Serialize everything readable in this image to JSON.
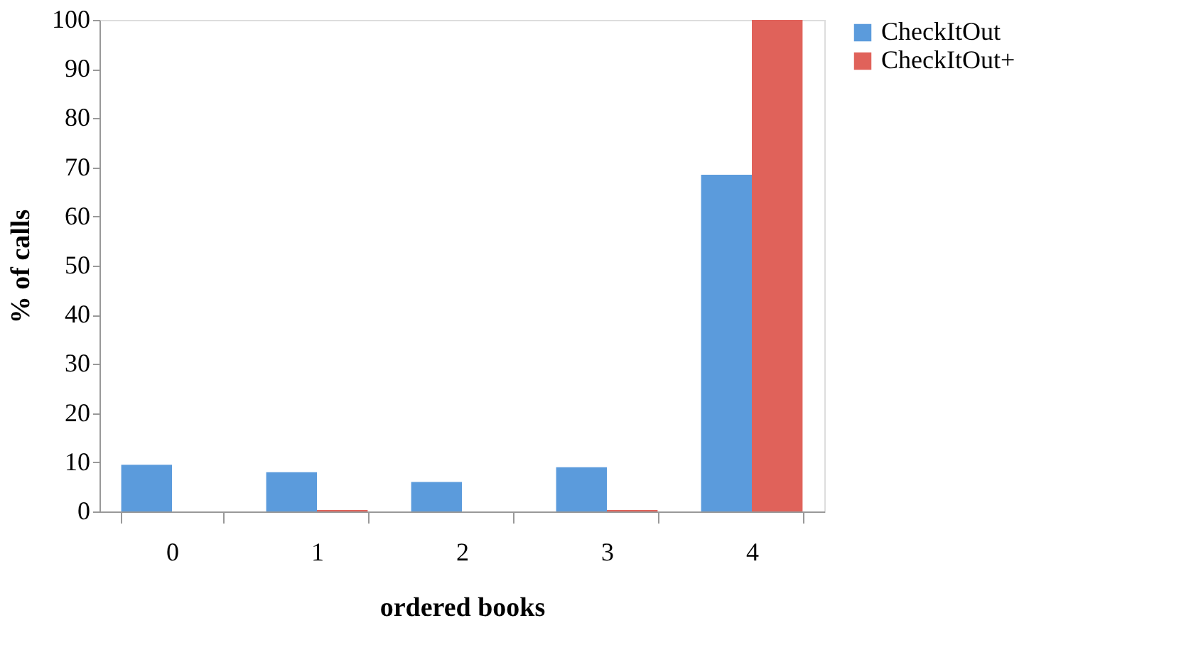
{
  "chart_data": {
    "type": "bar",
    "xlabel": "ordered books",
    "ylabel": "% of calls",
    "categories": [
      "0",
      "1",
      "2",
      "3",
      "4"
    ],
    "series": [
      {
        "name": "CheckItOut",
        "color": "#5b9bdc",
        "values": [
          9.5,
          8,
          6,
          9,
          68.5
        ]
      },
      {
        "name": "CheckItOut+",
        "color": "#e0625a",
        "values": [
          0,
          0.3,
          0,
          0.3,
          100
        ]
      }
    ],
    "ylim": [
      0,
      100
    ],
    "yticks": [
      0,
      10,
      20,
      30,
      40,
      50,
      60,
      70,
      80,
      90,
      100
    ],
    "grid": false,
    "legend": "right"
  }
}
